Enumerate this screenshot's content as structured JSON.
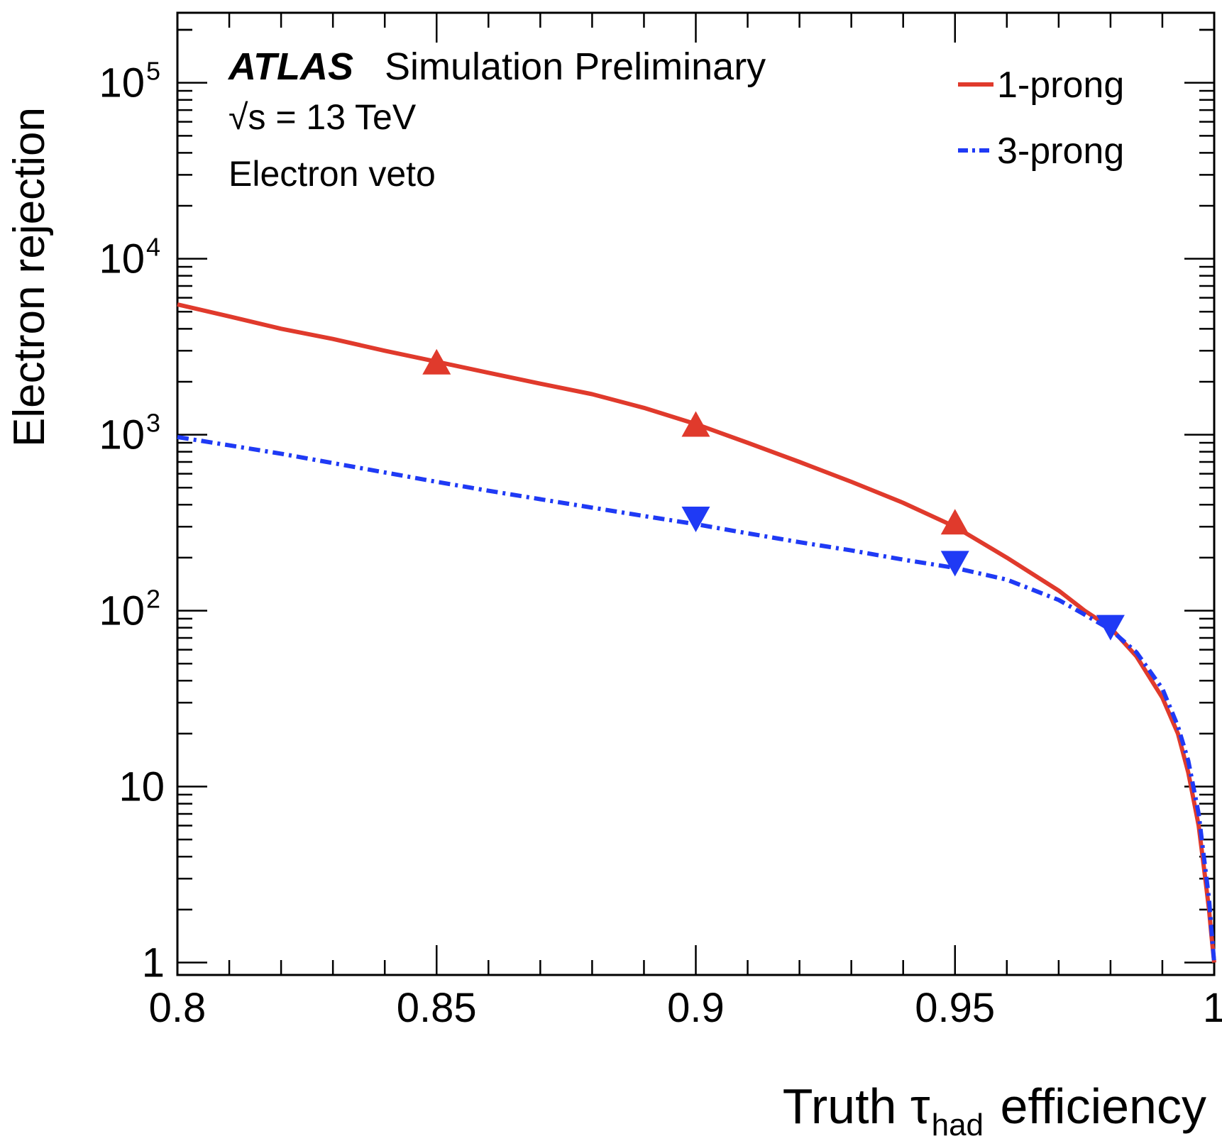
{
  "chart_data": {
    "type": "line",
    "experiment": "ATLAS",
    "label": "Simulation Preliminary",
    "energy_prefix": "√s = 13 TeV",
    "description": "Electron veto",
    "xlabel_main": "Truth τ",
    "xlabel_sub": "had",
    "xlabel_tail": " efficiency",
    "ylabel": "Electron rejection",
    "xlim": [
      0.8,
      1.0
    ],
    "ylim": [
      0.85,
      250000
    ],
    "yscale": "log",
    "x_ticks": [
      {
        "value": 0.8,
        "label": "0.8"
      },
      {
        "value": 0.85,
        "label": "0.85"
      },
      {
        "value": 0.9,
        "label": "0.9"
      },
      {
        "value": 0.95,
        "label": "0.95"
      },
      {
        "value": 1.0,
        "label": "1"
      }
    ],
    "y_ticks": [
      {
        "value": 1,
        "base": "1",
        "exp": ""
      },
      {
        "value": 10,
        "base": "10",
        "exp": ""
      },
      {
        "value": 100,
        "base": "10",
        "exp": "2"
      },
      {
        "value": 1000,
        "base": "10",
        "exp": "3"
      },
      {
        "value": 10000,
        "base": "10",
        "exp": "4"
      },
      {
        "value": 100000,
        "base": "10",
        "exp": "5"
      }
    ],
    "legend_position": "top-right",
    "series": [
      {
        "name": "1-prong",
        "color": "#e03a2c",
        "style": "solid",
        "marker": "triangle-up",
        "x": [
          0.8,
          0.81,
          0.82,
          0.83,
          0.84,
          0.85,
          0.86,
          0.87,
          0.88,
          0.89,
          0.9,
          0.91,
          0.92,
          0.93,
          0.94,
          0.95,
          0.96,
          0.97,
          0.975,
          0.98,
          0.985,
          0.99,
          0.993,
          0.995,
          0.997,
          0.998,
          0.999,
          0.9995,
          1.0
        ],
        "y": [
          5500,
          4700,
          4000,
          3500,
          3000,
          2600,
          2250,
          1950,
          1700,
          1420,
          1150,
          900,
          700,
          540,
          410,
          300,
          200,
          130,
          100,
          80,
          55,
          32,
          20,
          12,
          6,
          3.5,
          2,
          1.4,
          1
        ],
        "marker_points": [
          {
            "x": 0.85,
            "y": 2600
          },
          {
            "x": 0.9,
            "y": 1150
          },
          {
            "x": 0.95,
            "y": 320
          }
        ]
      },
      {
        "name": "3-prong",
        "color": "#1f3af5",
        "style": "dash-dot",
        "marker": "triangle-down",
        "x": [
          0.8,
          0.81,
          0.82,
          0.83,
          0.84,
          0.85,
          0.86,
          0.87,
          0.88,
          0.89,
          0.9,
          0.91,
          0.92,
          0.93,
          0.94,
          0.95,
          0.96,
          0.97,
          0.975,
          0.98,
          0.985,
          0.99,
          0.993,
          0.995,
          0.997,
          0.998,
          0.999,
          0.9995,
          1.0
        ],
        "y": [
          970,
          870,
          780,
          690,
          610,
          540,
          480,
          430,
          385,
          345,
          310,
          275,
          245,
          220,
          195,
          175,
          150,
          115,
          95,
          78,
          58,
          36,
          22,
          14,
          7,
          4,
          2.3,
          1.5,
          1
        ],
        "marker_points": [
          {
            "x": 0.9,
            "y": 330
          },
          {
            "x": 0.95,
            "y": 185
          },
          {
            "x": 0.98,
            "y": 80
          }
        ]
      }
    ]
  }
}
